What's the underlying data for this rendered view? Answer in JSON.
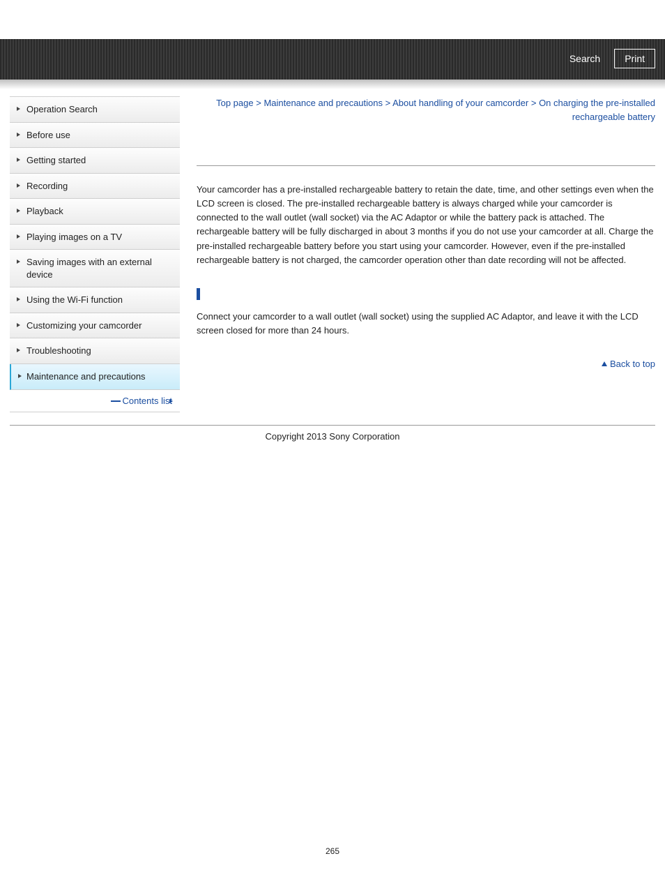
{
  "header": {
    "search_label": "Search",
    "print_label": "Print"
  },
  "sidebar": {
    "items": [
      {
        "label": "Operation Search",
        "active": false
      },
      {
        "label": "Before use",
        "active": false
      },
      {
        "label": "Getting started",
        "active": false
      },
      {
        "label": "Recording",
        "active": false
      },
      {
        "label": "Playback",
        "active": false
      },
      {
        "label": "Playing images on a TV",
        "active": false
      },
      {
        "label": "Saving images with an external device",
        "active": false
      },
      {
        "label": "Using the Wi-Fi function",
        "active": false
      },
      {
        "label": "Customizing your camcorder",
        "active": false
      },
      {
        "label": "Troubleshooting",
        "active": false
      },
      {
        "label": "Maintenance and precautions",
        "active": true
      }
    ],
    "contents_link": "Contents list"
  },
  "breadcrumb": {
    "parts": [
      "Top page",
      "Maintenance and precautions",
      "About handling of your camcorder",
      "On charging the pre-installed rechargeable battery"
    ],
    "sep": " > "
  },
  "content": {
    "para1": "Your camcorder has a pre-installed rechargeable battery to retain the date, time, and other settings even when the LCD screen is closed. The pre-installed rechargeable battery is always charged while your camcorder is connected to the wall outlet (wall socket) via the AC Adaptor or while the battery pack is attached. The rechargeable battery will be fully discharged in about 3 months if you do not use your camcorder at all. Charge the pre-installed rechargeable battery before you start using your camcorder. However, even if the pre-installed rechargeable battery is not charged, the camcorder operation other than date recording will not be affected.",
    "para2": "Connect your camcorder to a wall outlet (wall socket) using the supplied AC Adaptor, and leave it with the LCD screen closed for more than 24 hours.",
    "back_to_top": "Back to top"
  },
  "footer": {
    "copyright": "Copyright 2013 Sony Corporation"
  },
  "page_number": "265",
  "colors": {
    "link": "#1b4ea0",
    "header_bg": "#2f2f2f",
    "active_bg": "#d6f0fb",
    "border": "#cfcfcf"
  }
}
